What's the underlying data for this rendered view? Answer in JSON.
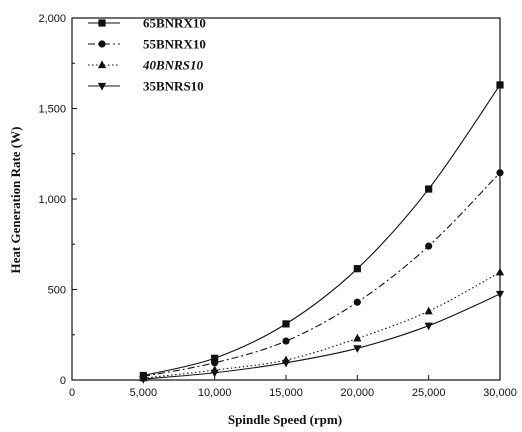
{
  "chart_data": {
    "type": "line",
    "xlabel": "Spindle Speed (rpm)",
    "ylabel": "Heat Generation Rate (W)",
    "xlim": [
      0,
      30000
    ],
    "ylim": [
      0,
      2000
    ],
    "x_ticks": [
      0,
      5000,
      10000,
      15000,
      20000,
      25000,
      30000
    ],
    "x_tick_labels": [
      "0",
      "5,000",
      "10,000",
      "15,000",
      "20,000",
      "25,000",
      "30,000"
    ],
    "y_ticks": [
      0,
      500,
      1000,
      1500,
      2000
    ],
    "y_tick_labels": [
      "0",
      "500",
      "1,000",
      "1,500",
      "2,000"
    ],
    "grid": false,
    "legend_position": "top-left",
    "x": [
      5000,
      10000,
      15000,
      20000,
      25000,
      30000
    ],
    "series": [
      {
        "name": "65BNRX10",
        "marker": "square",
        "line": "solid",
        "italic": false,
        "values": [
          25,
          120,
          310,
          615,
          1055,
          1630
        ]
      },
      {
        "name": "55BNRX10",
        "marker": "circle",
        "line": "dashdot",
        "italic": false,
        "values": [
          20,
          95,
          215,
          430,
          740,
          1145
        ]
      },
      {
        "name": "40BNRS10",
        "marker": "triangle-up",
        "line": "dotted",
        "italic": true,
        "values": [
          10,
          55,
          110,
          230,
          380,
          595
        ]
      },
      {
        "name": "35BNRS10",
        "marker": "triangle-down",
        "line": "solid",
        "italic": false,
        "values": [
          5,
          40,
          95,
          175,
          300,
          475
        ]
      }
    ]
  }
}
